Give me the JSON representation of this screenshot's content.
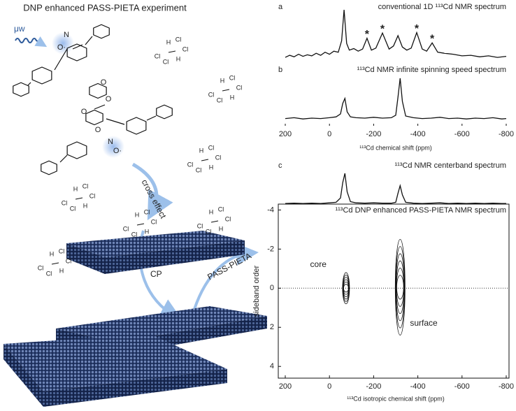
{
  "scheme": {
    "title": "DNP enhanced PASS-PIETA experiment",
    "microwave": "μw",
    "cross_effect": "cross effect",
    "cp": "CP",
    "pass_pieta": "PASS-PIETA",
    "radical_atoms": [
      "N",
      "O·",
      "O",
      "O",
      "O",
      "O",
      "N",
      "O·"
    ],
    "solvent_molecules": [
      [
        "H",
        "Cl",
        "Cl",
        "Cl",
        "Cl",
        "H"
      ],
      [
        "H",
        "Cl",
        "Cl",
        "Cl",
        "Cl",
        "H"
      ],
      [
        "H",
        "Cl",
        "Cl",
        "Cl",
        "Cl",
        "H"
      ],
      [
        "H",
        "Cl",
        "Cl",
        "Cl",
        "Cl",
        "H"
      ],
      [
        "H",
        "Cl",
        "Cl",
        "Cl",
        "Cl",
        "H"
      ],
      [
        "H",
        "Cl",
        "Cl",
        "Cl",
        "Cl",
        "H"
      ],
      [
        "H",
        "Cl",
        "Cl",
        "Cl",
        "Cl",
        "H"
      ]
    ]
  },
  "chart_data": [
    {
      "type": "line",
      "panel": "a",
      "title": "conventional 1D ¹¹³Cd NMR spectrum",
      "color": "#111111",
      "xlim": [
        200,
        -800
      ],
      "x": [
        200,
        180,
        160,
        140,
        120,
        100,
        80,
        60,
        40,
        20,
        0,
        -20,
        -40,
        -55,
        -66,
        -78,
        -90,
        -110,
        -130,
        -150,
        -170,
        -190,
        -210,
        -240,
        -270,
        -290,
        -310,
        -330,
        -350,
        -370,
        -395,
        -420,
        -440,
        -465,
        -490,
        -520,
        -560,
        -600,
        -640,
        -680,
        -720,
        -760,
        -800
      ],
      "values": [
        8,
        12,
        9,
        14,
        10,
        13,
        11,
        16,
        12,
        18,
        14,
        20,
        18,
        40,
        100,
        35,
        22,
        25,
        20,
        24,
        45,
        22,
        26,
        55,
        24,
        30,
        50,
        28,
        22,
        26,
        56,
        24,
        20,
        36,
        18,
        16,
        14,
        11,
        12,
        9,
        11,
        8,
        10
      ],
      "peak_marks": {
        "label": "*",
        "x": [
          -170,
          -240,
          -395,
          -465
        ]
      }
    },
    {
      "type": "line",
      "panel": "b",
      "title": "¹¹³Cd NMR infinite spinning speed spectrum",
      "color": "#111111",
      "xlim": [
        200,
        -800
      ],
      "xticks": [
        200,
        0,
        -200,
        -400,
        -600,
        -800
      ],
      "xlabel": "¹¹³Cd chemical shift (ppm)",
      "x": [
        200,
        160,
        120,
        80,
        40,
        0,
        -30,
        -50,
        -60,
        -70,
        -80,
        -95,
        -120,
        -160,
        -200,
        -240,
        -280,
        -300,
        -310,
        -320,
        -330,
        -345,
        -380,
        -420,
        -460,
        -500,
        -540,
        -580,
        -620,
        -660,
        -700,
        -740,
        -780,
        -800
      ],
      "values": [
        4,
        6,
        3,
        5,
        4,
        6,
        8,
        15,
        40,
        52,
        20,
        8,
        6,
        5,
        7,
        5,
        6,
        12,
        55,
        100,
        45,
        10,
        6,
        4,
        5,
        7,
        4,
        5,
        3,
        5,
        4,
        6,
        3,
        4
      ]
    },
    {
      "type": "line",
      "panel": "c",
      "title": "¹¹³Cd NMR centerband spectrum",
      "color": "#111111",
      "xlim": [
        200,
        -800
      ],
      "x": [
        200,
        160,
        120,
        80,
        40,
        0,
        -30,
        -50,
        -60,
        -70,
        -80,
        -95,
        -120,
        -160,
        -200,
        -240,
        -280,
        -300,
        -310,
        -320,
        -330,
        -345,
        -380,
        -420,
        -460,
        -500,
        -540,
        -580,
        -620,
        -660,
        -700,
        -740,
        -780,
        -800
      ],
      "values": [
        2,
        3,
        2,
        3,
        2,
        4,
        6,
        20,
        70,
        100,
        40,
        8,
        4,
        3,
        4,
        3,
        3,
        6,
        35,
        60,
        30,
        6,
        3,
        2,
        3,
        4,
        2,
        3,
        2,
        3,
        2,
        3,
        2,
        2
      ]
    },
    {
      "type": "contour",
      "title": "¹¹³Cd DNP enhanced PASS-PIETA NMR spectrum",
      "xlabel": "¹¹³Cd isotropic chemical shift (ppm)",
      "ylabel": "sideband order",
      "xlim": [
        200,
        -800
      ],
      "ylim": [
        -4.3,
        4.6
      ],
      "xticks": [
        200,
        0,
        -200,
        -400,
        -600,
        -800
      ],
      "yticks": [
        -4,
        -2,
        0,
        2,
        4
      ],
      "hline": 0,
      "color": "#111111",
      "peaks": [
        {
          "label": "core",
          "x": -75,
          "y": [
            -0.8,
            0.8
          ]
        },
        {
          "label": "surface",
          "x": -320,
          "y": [
            -2.5,
            2.4
          ]
        }
      ]
    }
  ]
}
